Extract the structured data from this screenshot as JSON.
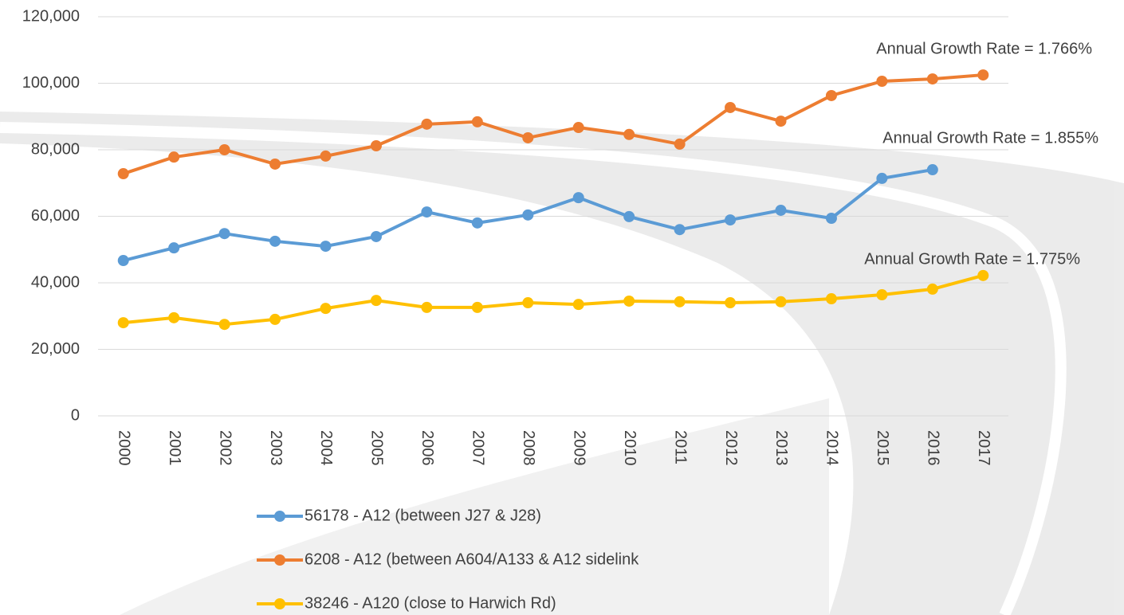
{
  "chart_data": {
    "type": "line",
    "categories": [
      "2000",
      "2001",
      "2002",
      "2003",
      "2004",
      "2005",
      "2006",
      "2007",
      "2008",
      "2009",
      "2010",
      "2011",
      "2012",
      "2013",
      "2014",
      "2015",
      "2016",
      "2017"
    ],
    "series": [
      {
        "name": "56178 - A12 (between J27 & J28)",
        "color": "#5b9bd5",
        "values": [
          46700,
          50500,
          54800,
          52500,
          51000,
          53900,
          61300,
          58000,
          60400,
          65600,
          59900,
          56000,
          58900,
          61800,
          59400,
          71400,
          74000,
          null
        ]
      },
      {
        "name": "6208 - A12 (between A604/A133 & A12 sidelink",
        "color": "#ed7d31",
        "values": [
          72800,
          77800,
          80000,
          75700,
          78100,
          81200,
          87700,
          88400,
          83600,
          86700,
          84600,
          81700,
          92700,
          88600,
          96300,
          100600,
          101300,
          102500
        ]
      },
      {
        "name": "38246 - A120 (close to Harwich Rd)",
        "color": "#ffc000",
        "values": [
          28000,
          29500,
          27500,
          29000,
          32300,
          34700,
          32600,
          32600,
          34000,
          33500,
          34500,
          34300,
          34000,
          34300,
          35200,
          36400,
          38100,
          42200
        ]
      }
    ],
    "ylim": [
      0,
      120000
    ],
    "yticks": [
      0,
      {
        "value": 20000,
        "label": "20,000"
      },
      {
        "value": 40000,
        "label": "40,000"
      },
      {
        "value": 60000,
        "label": "60,000"
      },
      {
        "value": 80000,
        "label": "80,000"
      },
      {
        "value": 100000,
        "label": "100,000"
      },
      {
        "value": 120000,
        "label": "120,000"
      }
    ],
    "grid": true,
    "legend": "bottom",
    "annotations": [
      "Annual Growth Rate  = 1.766%",
      "Annual Growth Rate = 1.855%",
      "Annual Growth Rate = 1.775%"
    ]
  }
}
